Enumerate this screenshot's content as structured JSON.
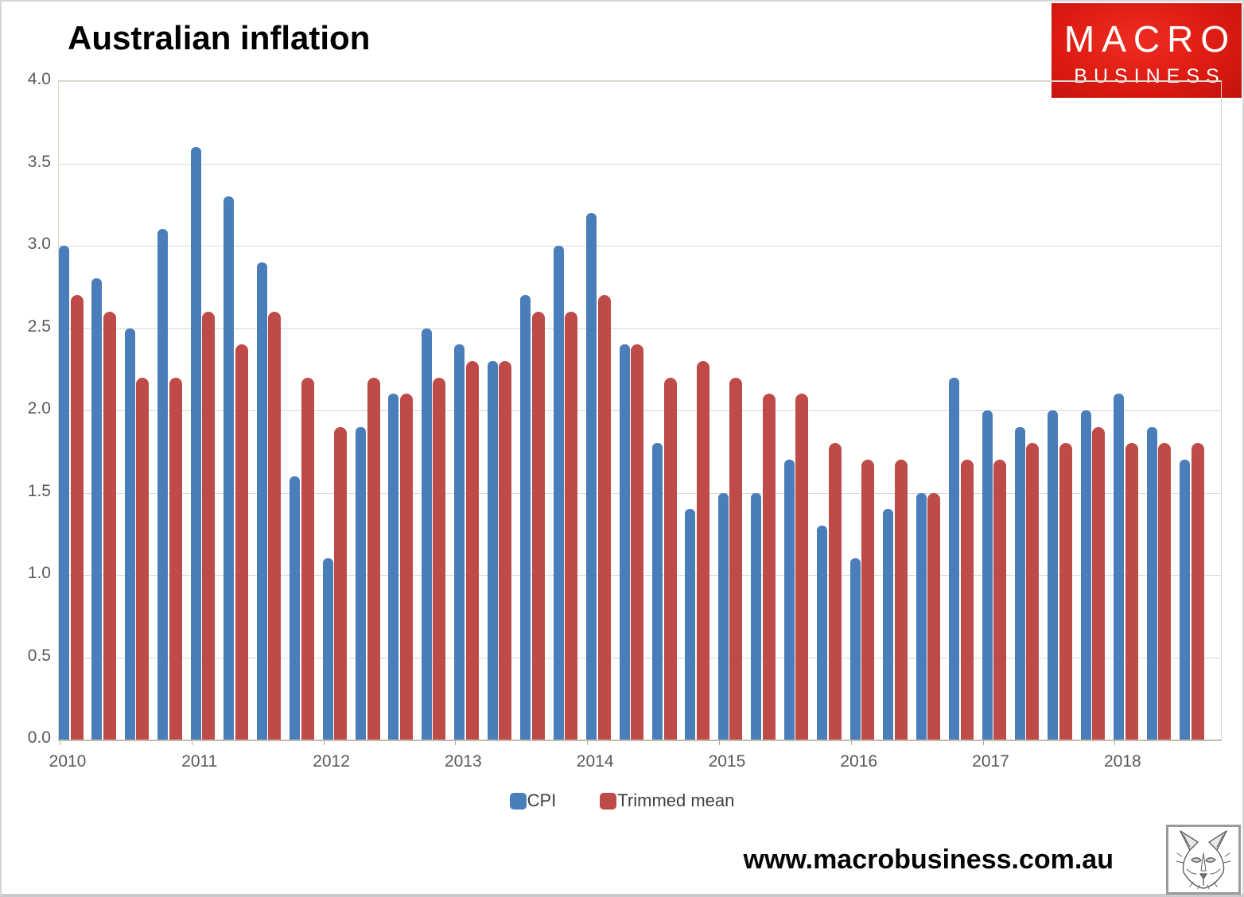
{
  "page": {
    "website": "www.macrobusiness.com.au",
    "logo": {
      "line1": "MACRO",
      "line2": "BUSINESS",
      "bg_color": "#dc1b12"
    }
  },
  "chart_data": {
    "type": "bar",
    "title": "Australian inflation",
    "categories": [
      "2010 Q1",
      "2010 Q2",
      "2010 Q3",
      "2010 Q4",
      "2011 Q1",
      "2011 Q2",
      "2011 Q3",
      "2011 Q4",
      "2012 Q1",
      "2012 Q2",
      "2012 Q3",
      "2012 Q4",
      "2013 Q1",
      "2013 Q2",
      "2013 Q3",
      "2013 Q4",
      "2014 Q1",
      "2014 Q2",
      "2014 Q3",
      "2014 Q4",
      "2015 Q1",
      "2015 Q2",
      "2015 Q3",
      "2015 Q4",
      "2016 Q1",
      "2016 Q2",
      "2016 Q3",
      "2016 Q4",
      "2017 Q1",
      "2017 Q2",
      "2017 Q3",
      "2017 Q4",
      "2018 Q1",
      "2018 Q2",
      "2018 Q3"
    ],
    "series": [
      {
        "name": "CPI",
        "color": "#4a7ebb",
        "values": [
          3.0,
          2.8,
          2.5,
          3.1,
          3.6,
          3.3,
          2.9,
          1.6,
          1.1,
          1.9,
          2.1,
          2.5,
          2.4,
          2.3,
          2.7,
          3.0,
          3.2,
          2.4,
          1.8,
          1.4,
          1.5,
          1.5,
          1.7,
          1.3,
          1.1,
          1.4,
          1.5,
          2.2,
          2.0,
          1.9,
          2.0,
          2.0,
          2.1,
          1.9,
          1.7
        ]
      },
      {
        "name": "Trimmed mean",
        "color": "#be4b48",
        "values": [
          2.7,
          2.6,
          2.2,
          2.2,
          2.6,
          2.4,
          2.6,
          2.2,
          1.9,
          2.2,
          2.1,
          2.2,
          2.3,
          2.3,
          2.6,
          2.6,
          2.7,
          2.4,
          2.2,
          2.3,
          2.2,
          2.1,
          2.1,
          1.8,
          1.7,
          1.7,
          1.5,
          1.7,
          1.7,
          1.8,
          1.8,
          1.9,
          1.8,
          1.8,
          1.8
        ]
      }
    ],
    "x_tick_labels": [
      "2010",
      "2011",
      "2012",
      "2013",
      "2014",
      "2015",
      "2016",
      "2017",
      "2018"
    ],
    "ytick_labels": [
      "0.0",
      "0.5",
      "1.0",
      "1.5",
      "2.0",
      "2.5",
      "3.0",
      "3.5",
      "4.0"
    ],
    "ytick_step": 0.5,
    "ylim": [
      0,
      4
    ],
    "grid": true,
    "legend_position": "bottom"
  }
}
